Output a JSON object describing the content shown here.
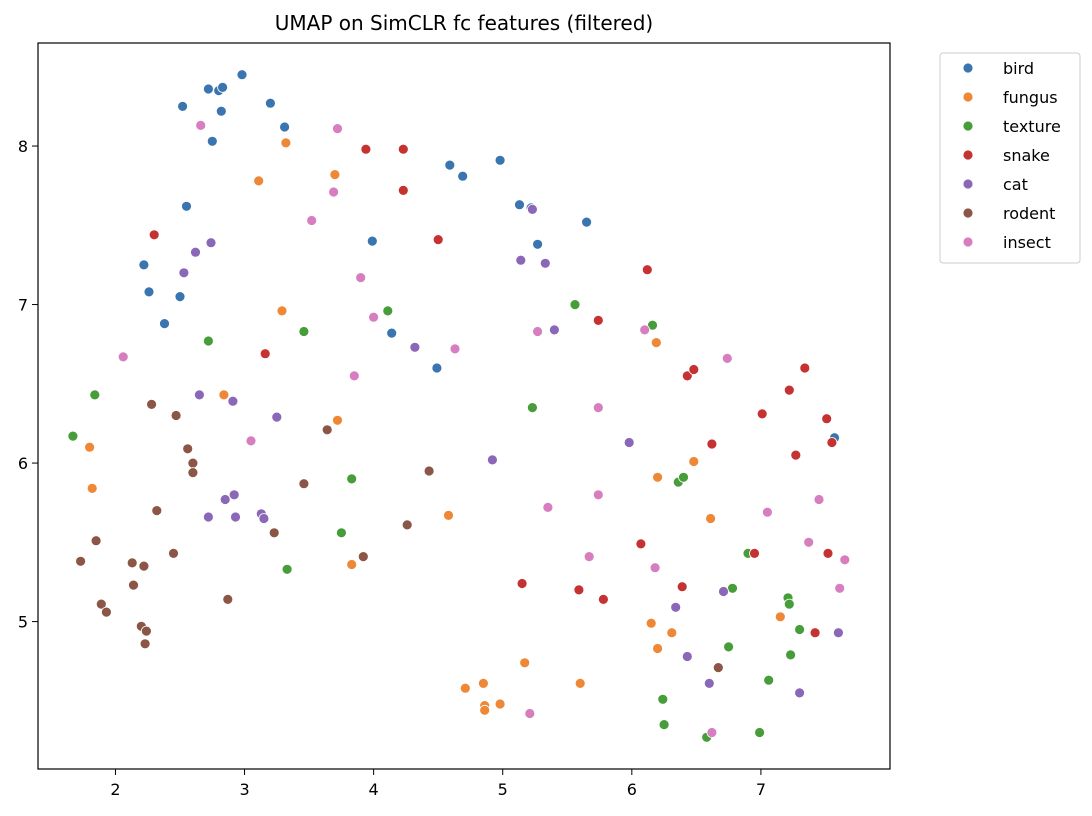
{
  "chart_data": {
    "type": "scatter",
    "title": "UMAP on SimCLR fc features (filtered)",
    "xlabel": "",
    "ylabel": "",
    "xlim": [
      1.4,
      8.0
    ],
    "ylim": [
      4.07,
      8.65
    ],
    "xticks": [
      2,
      3,
      4,
      5,
      6,
      7
    ],
    "yticks": [
      5,
      6,
      7,
      8
    ],
    "grid": false,
    "legend_position": "outside-top-right",
    "series": [
      {
        "name": "bird",
        "color": "#3a75b0",
        "points": [
          [
            2.72,
            8.36
          ],
          [
            2.8,
            8.35
          ],
          [
            2.83,
            8.37
          ],
          [
            2.98,
            8.45
          ],
          [
            2.82,
            8.22
          ],
          [
            2.52,
            8.25
          ],
          [
            3.2,
            8.27
          ],
          [
            3.31,
            8.12
          ],
          [
            2.75,
            8.03
          ],
          [
            2.55,
            7.62
          ],
          [
            2.22,
            7.25
          ],
          [
            2.26,
            7.08
          ],
          [
            2.5,
            7.05
          ],
          [
            2.38,
            6.88
          ],
          [
            3.99,
            7.4
          ],
          [
            4.14,
            6.82
          ],
          [
            4.49,
            6.6
          ],
          [
            4.59,
            7.88
          ],
          [
            4.69,
            7.81
          ],
          [
            4.98,
            7.91
          ],
          [
            5.13,
            7.63
          ],
          [
            5.22,
            7.61
          ],
          [
            5.27,
            7.38
          ],
          [
            5.65,
            7.52
          ],
          [
            7.57,
            6.16
          ]
        ]
      },
      {
        "name": "fungus",
        "color": "#ee8836",
        "points": [
          [
            3.32,
            8.02
          ],
          [
            3.11,
            7.78
          ],
          [
            3.7,
            7.82
          ],
          [
            3.29,
            6.96
          ],
          [
            2.84,
            6.43
          ],
          [
            3.72,
            6.27
          ],
          [
            1.8,
            6.1
          ],
          [
            1.82,
            5.84
          ],
          [
            3.83,
            5.36
          ],
          [
            4.58,
            5.67
          ],
          [
            4.71,
            4.58
          ],
          [
            4.85,
            4.61
          ],
          [
            4.86,
            4.47
          ],
          [
            4.86,
            4.44
          ],
          [
            4.98,
            4.48
          ],
          [
            5.17,
            4.74
          ],
          [
            5.6,
            4.61
          ],
          [
            6.19,
            6.76
          ],
          [
            6.2,
            5.91
          ],
          [
            6.48,
            6.01
          ],
          [
            6.61,
            5.65
          ],
          [
            6.15,
            4.99
          ],
          [
            6.2,
            4.83
          ],
          [
            6.31,
            4.93
          ],
          [
            7.15,
            5.03
          ]
        ]
      },
      {
        "name": "texture",
        "color": "#479d3a",
        "points": [
          [
            1.67,
            6.17
          ],
          [
            1.84,
            6.43
          ],
          [
            2.72,
            6.77
          ],
          [
            3.46,
            6.83
          ],
          [
            3.33,
            5.33
          ],
          [
            3.75,
            5.56
          ],
          [
            3.83,
            5.9
          ],
          [
            4.11,
            6.96
          ],
          [
            5.23,
            6.35
          ],
          [
            5.56,
            7.0
          ],
          [
            6.16,
            6.87
          ],
          [
            6.36,
            5.88
          ],
          [
            6.4,
            5.91
          ],
          [
            6.9,
            5.43
          ],
          [
            6.78,
            5.21
          ],
          [
            6.75,
            4.84
          ],
          [
            6.24,
            4.51
          ],
          [
            6.25,
            4.35
          ],
          [
            6.58,
            4.27
          ],
          [
            6.99,
            4.3
          ],
          [
            7.06,
            4.63
          ],
          [
            7.21,
            5.15
          ],
          [
            7.22,
            5.11
          ],
          [
            7.23,
            4.79
          ],
          [
            7.3,
            4.95
          ]
        ]
      },
      {
        "name": "snake",
        "color": "#c43331",
        "points": [
          [
            2.3,
            7.44
          ],
          [
            3.16,
            6.69
          ],
          [
            3.94,
            7.98
          ],
          [
            4.23,
            7.98
          ],
          [
            4.23,
            7.72
          ],
          [
            4.5,
            7.41
          ],
          [
            5.74,
            6.9
          ],
          [
            6.12,
            7.22
          ],
          [
            6.43,
            6.55
          ],
          [
            6.48,
            6.59
          ],
          [
            6.62,
            6.12
          ],
          [
            7.01,
            6.31
          ],
          [
            7.22,
            6.46
          ],
          [
            7.34,
            6.6
          ],
          [
            7.27,
            6.05
          ],
          [
            7.51,
            6.28
          ],
          [
            7.55,
            6.13
          ],
          [
            7.52,
            5.43
          ],
          [
            6.07,
            5.49
          ],
          [
            6.95,
            5.43
          ],
          [
            6.39,
            5.22
          ],
          [
            5.15,
            5.24
          ],
          [
            5.59,
            5.2
          ],
          [
            5.78,
            5.14
          ],
          [
            7.42,
            4.93
          ]
        ]
      },
      {
        "name": "cat",
        "color": "#8b67b8",
        "points": [
          [
            2.74,
            7.39
          ],
          [
            2.62,
            7.33
          ],
          [
            2.53,
            7.2
          ],
          [
            2.65,
            6.43
          ],
          [
            2.91,
            6.39
          ],
          [
            3.25,
            6.29
          ],
          [
            2.85,
            5.77
          ],
          [
            2.92,
            5.8
          ],
          [
            2.72,
            5.66
          ],
          [
            2.93,
            5.66
          ],
          [
            3.13,
            5.68
          ],
          [
            3.15,
            5.65
          ],
          [
            4.32,
            6.73
          ],
          [
            4.92,
            6.02
          ],
          [
            5.14,
            7.28
          ],
          [
            5.33,
            7.26
          ],
          [
            5.4,
            6.84
          ],
          [
            5.98,
            6.13
          ],
          [
            6.34,
            5.09
          ],
          [
            6.43,
            4.78
          ],
          [
            6.6,
            4.61
          ],
          [
            6.71,
            5.19
          ],
          [
            7.3,
            4.55
          ],
          [
            7.6,
            4.93
          ],
          [
            5.23,
            7.6
          ]
        ]
      },
      {
        "name": "rodent",
        "color": "#8b5645",
        "points": [
          [
            2.28,
            6.37
          ],
          [
            2.47,
            6.3
          ],
          [
            2.56,
            6.09
          ],
          [
            2.6,
            6.0
          ],
          [
            2.6,
            5.94
          ],
          [
            2.32,
            5.7
          ],
          [
            3.64,
            6.21
          ],
          [
            3.46,
            5.87
          ],
          [
            4.43,
            5.95
          ],
          [
            4.26,
            5.61
          ],
          [
            3.23,
            5.56
          ],
          [
            3.92,
            5.41
          ],
          [
            2.45,
            5.43
          ],
          [
            1.85,
            5.51
          ],
          [
            1.73,
            5.38
          ],
          [
            2.13,
            5.37
          ],
          [
            2.22,
            5.35
          ],
          [
            2.14,
            5.23
          ],
          [
            2.87,
            5.14
          ],
          [
            1.89,
            5.11
          ],
          [
            1.93,
            5.06
          ],
          [
            2.2,
            4.97
          ],
          [
            2.24,
            4.94
          ],
          [
            2.23,
            4.86
          ],
          [
            6.67,
            4.71
          ]
        ]
      },
      {
        "name": "insect",
        "color": "#d77ec0",
        "points": [
          [
            2.66,
            8.13
          ],
          [
            3.72,
            8.11
          ],
          [
            3.69,
            7.71
          ],
          [
            3.52,
            7.53
          ],
          [
            3.9,
            7.17
          ],
          [
            4.0,
            6.92
          ],
          [
            4.63,
            6.72
          ],
          [
            3.85,
            6.55
          ],
          [
            2.06,
            6.67
          ],
          [
            3.05,
            6.14
          ],
          [
            5.27,
            6.83
          ],
          [
            5.74,
            6.35
          ],
          [
            5.74,
            5.8
          ],
          [
            5.35,
            5.72
          ],
          [
            6.1,
            6.84
          ],
          [
            6.74,
            6.66
          ],
          [
            7.45,
            5.77
          ],
          [
            7.05,
            5.69
          ],
          [
            7.37,
            5.5
          ],
          [
            7.65,
            5.39
          ],
          [
            7.61,
            5.21
          ],
          [
            5.67,
            5.41
          ],
          [
            6.18,
            5.34
          ],
          [
            5.21,
            4.42
          ],
          [
            6.62,
            4.3
          ]
        ]
      }
    ]
  }
}
